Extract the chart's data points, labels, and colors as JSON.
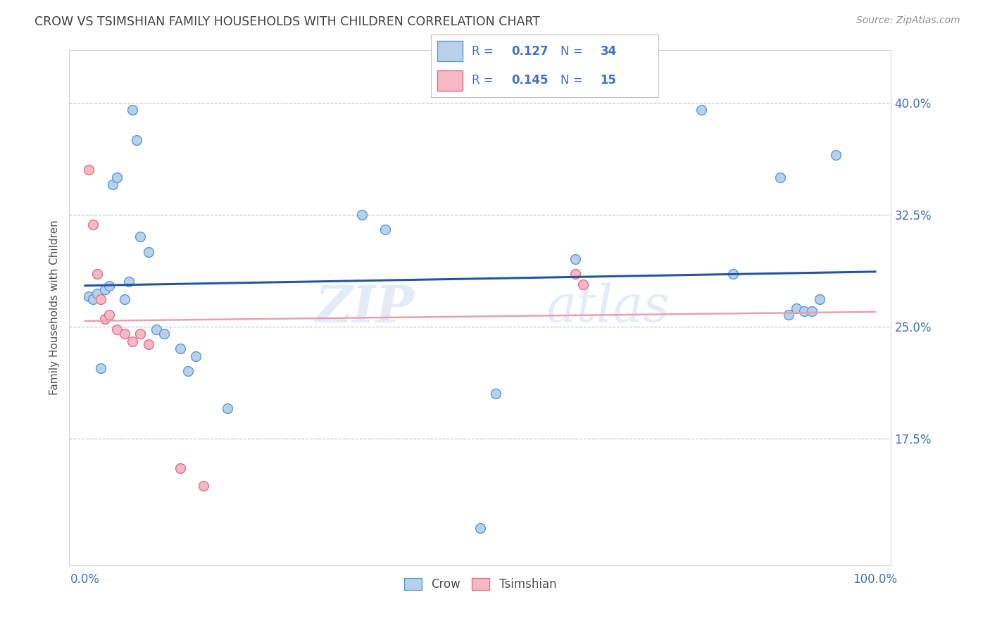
{
  "title": "CROW VS TSIMSHIAN FAMILY HOUSEHOLDS WITH CHILDREN CORRELATION CHART",
  "source": "Source: ZipAtlas.com",
  "ylabel": "Family Households with Children",
  "watermark": "ZIPatlas",
  "crow_R": 0.127,
  "crow_N": 34,
  "tsimshian_R": 0.145,
  "tsimshian_N": 15,
  "xlim": [
    -0.02,
    1.02
  ],
  "ylim": [
    0.09,
    0.435
  ],
  "yticks": [
    0.175,
    0.25,
    0.325,
    0.4
  ],
  "ytick_labels": [
    "17.5%",
    "25.0%",
    "32.5%",
    "40.0%"
  ],
  "crow_x": [
    0.005,
    0.01,
    0.015,
    0.02,
    0.025,
    0.03,
    0.035,
    0.04,
    0.05,
    0.055,
    0.06,
    0.065,
    0.07,
    0.08,
    0.09,
    0.1,
    0.12,
    0.13,
    0.14,
    0.18,
    0.35,
    0.38,
    0.52,
    0.5,
    0.62,
    0.78,
    0.82,
    0.88,
    0.89,
    0.9,
    0.91,
    0.92,
    0.93,
    0.95
  ],
  "crow_y": [
    0.27,
    0.268,
    0.272,
    0.222,
    0.275,
    0.277,
    0.345,
    0.35,
    0.268,
    0.28,
    0.395,
    0.375,
    0.31,
    0.3,
    0.248,
    0.245,
    0.235,
    0.22,
    0.23,
    0.195,
    0.325,
    0.315,
    0.205,
    0.115,
    0.295,
    0.395,
    0.285,
    0.35,
    0.258,
    0.262,
    0.26,
    0.26,
    0.268,
    0.365
  ],
  "tsimshian_x": [
    0.005,
    0.01,
    0.015,
    0.02,
    0.025,
    0.03,
    0.04,
    0.05,
    0.06,
    0.07,
    0.08,
    0.12,
    0.15,
    0.62,
    0.63
  ],
  "tsimshian_y": [
    0.355,
    0.318,
    0.285,
    0.268,
    0.255,
    0.258,
    0.248,
    0.245,
    0.24,
    0.245,
    0.238,
    0.155,
    0.143,
    0.285,
    0.278
  ],
  "crow_color": "#b8d0ea",
  "crow_edge_color": "#5b9bd5",
  "tsimshian_color": "#f5b8c4",
  "tsimshian_edge_color": "#e07090",
  "crow_line_color": "#2455a4",
  "tsimshian_line_color": "#e8a0b0",
  "background_color": "#ffffff",
  "grid_color": "#c0c0c0",
  "title_color": "#404040",
  "axis_label_color": "#4472c4",
  "marker_size": 100,
  "legend_all_color": "#4472c4",
  "legend_R_label_color": "#4472c4",
  "legend_N_label_color": "#4472c4"
}
